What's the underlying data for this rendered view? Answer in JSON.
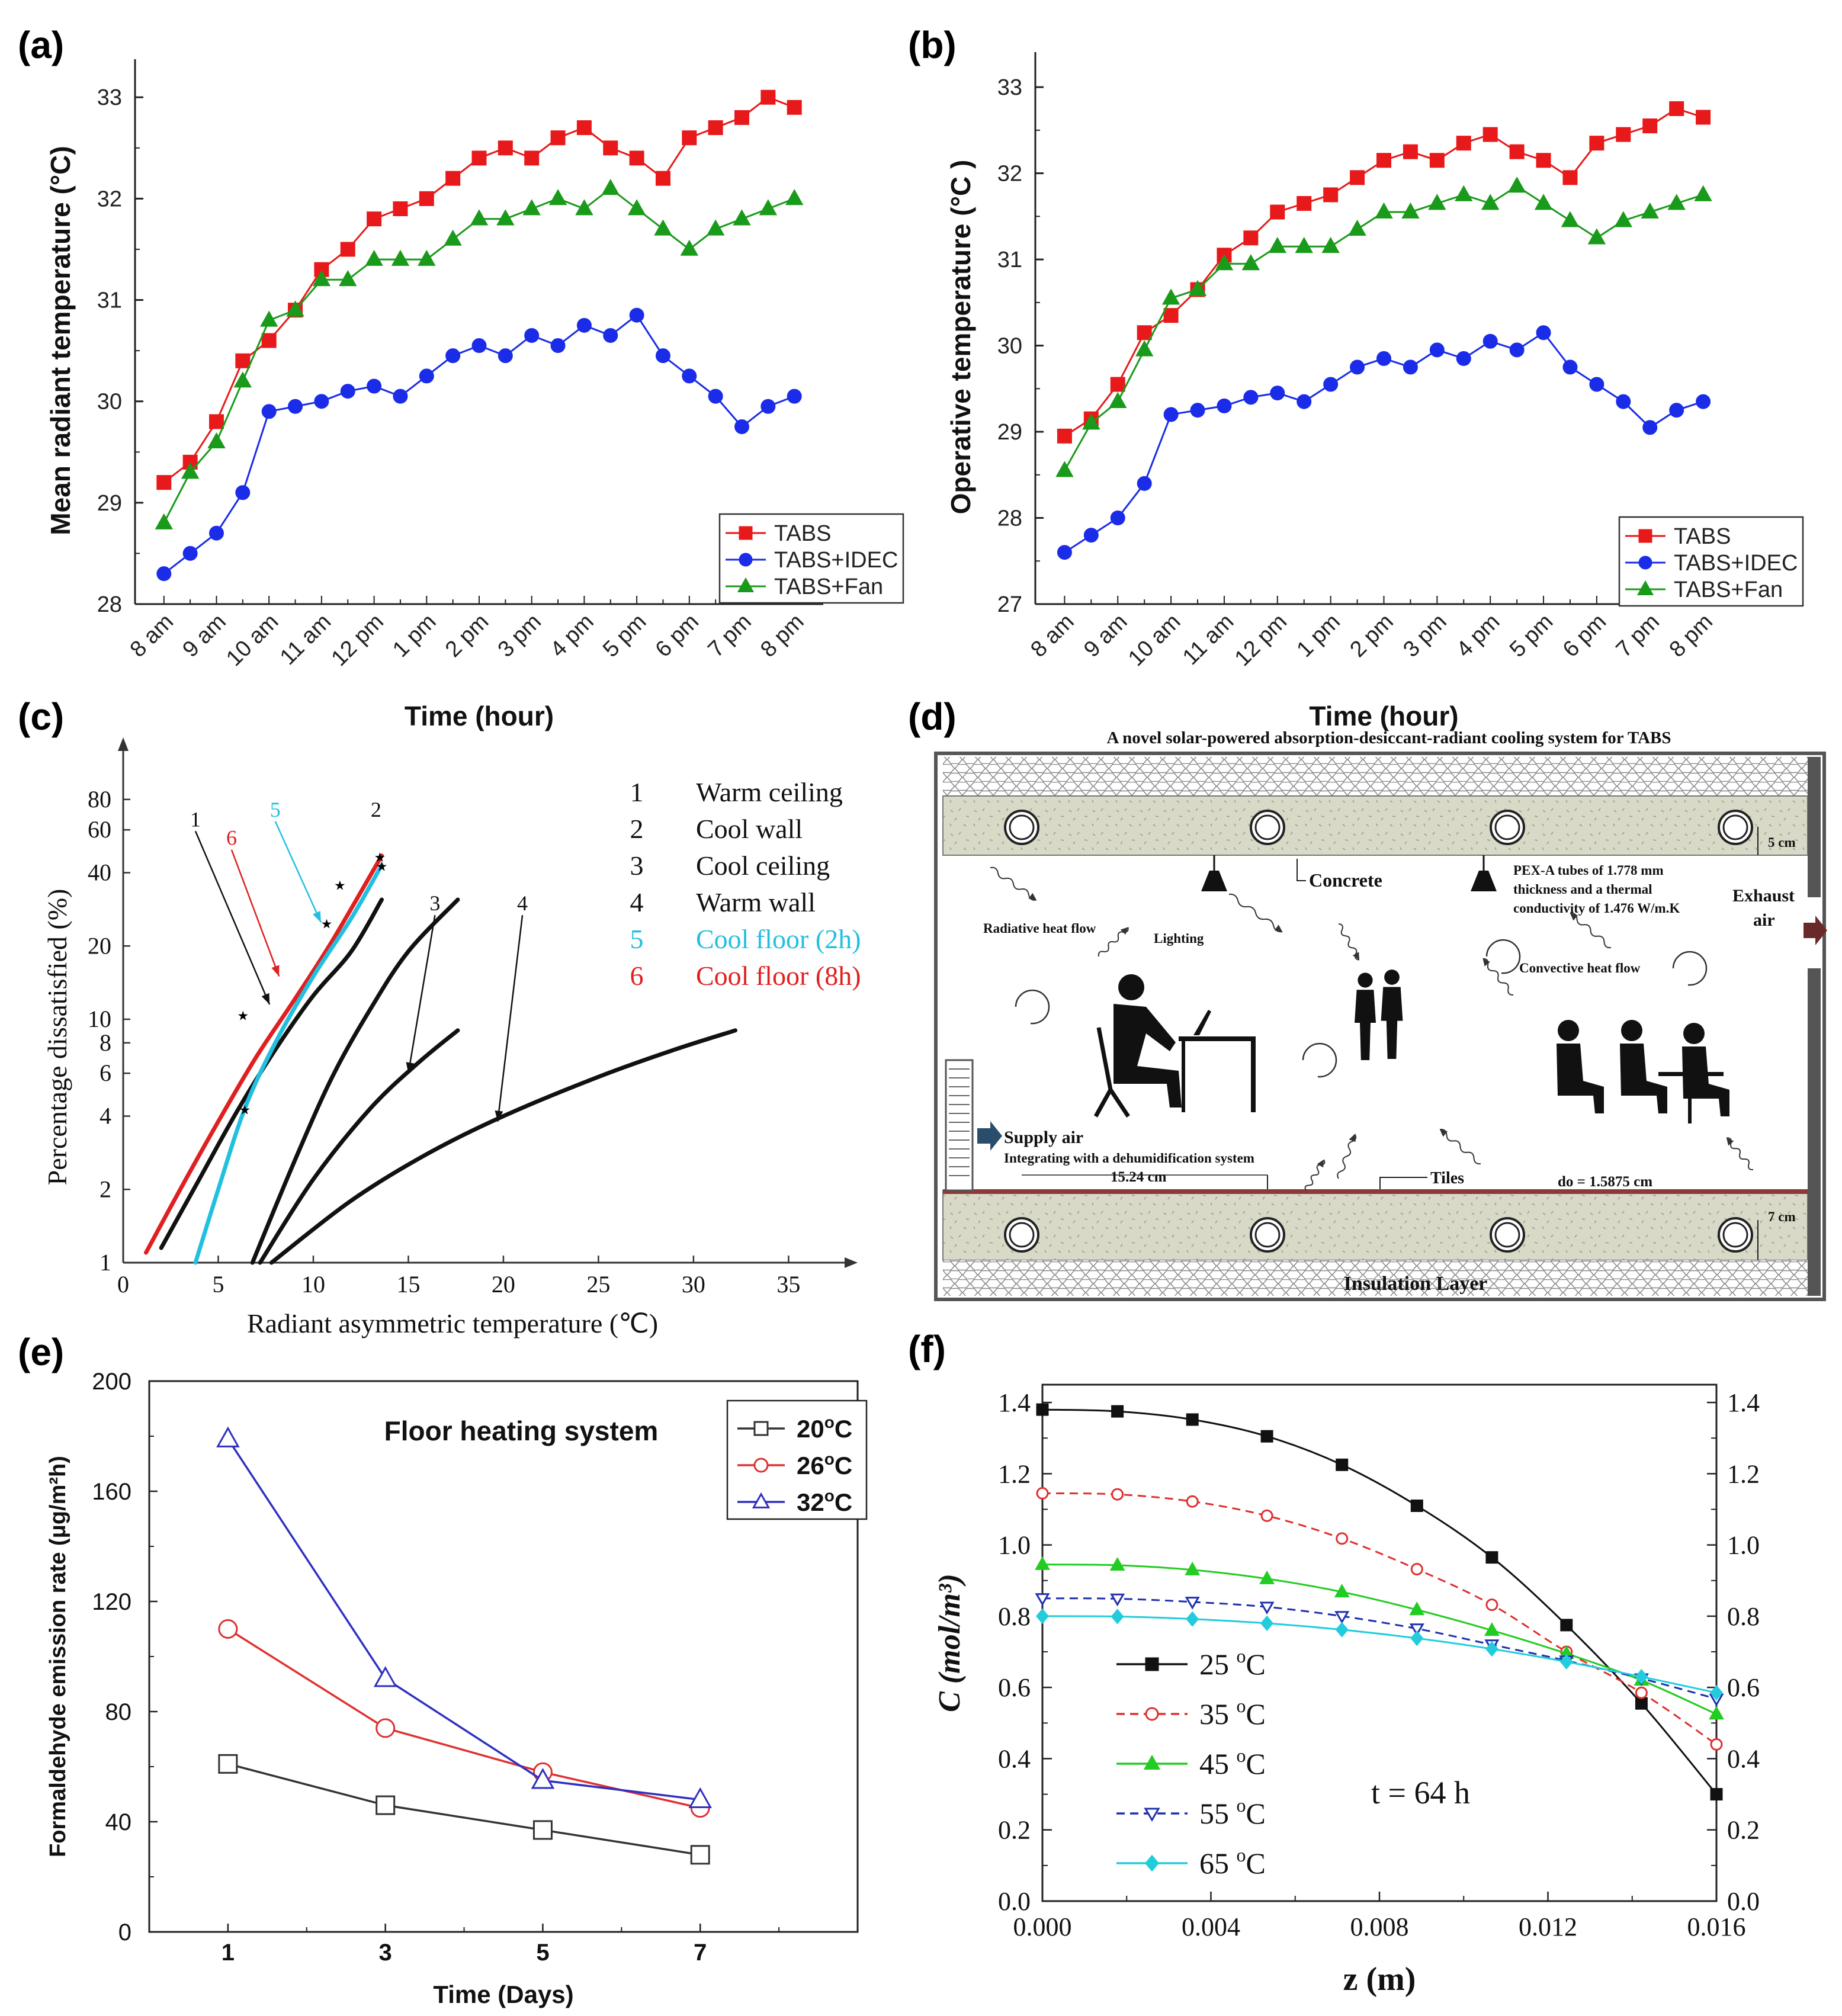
{
  "chart_data": [
    {
      "id": "a",
      "panel_label": "(a)",
      "type": "line",
      "xlabel": "Time (hour)",
      "ylabel": "Mean radiant temperature (°C)",
      "ylim": [
        28,
        33.2
      ],
      "yticks": [
        "28",
        "29",
        "30",
        "31",
        "32",
        "33"
      ],
      "xticks": [
        "8 am",
        "9 am",
        "10 am",
        "11 am",
        "12 pm",
        "1 pm",
        "2 pm",
        "3 pm",
        "4 pm",
        "5 pm",
        "6 pm",
        "7 pm",
        "8 pm"
      ],
      "x": [
        8,
        8.5,
        9,
        9.5,
        10,
        10.5,
        11,
        11.5,
        12,
        12.5,
        13,
        13.5,
        14,
        14.5,
        15,
        15.5,
        16,
        16.5,
        17,
        17.5,
        18,
        18.5,
        19,
        19.5,
        20
      ],
      "legend_position": "bottom-right",
      "series": [
        {
          "name": "TABS",
          "color": "#e8191a",
          "marker": "square",
          "values": [
            29.2,
            29.4,
            29.8,
            30.4,
            30.6,
            30.9,
            31.3,
            31.5,
            31.8,
            31.9,
            32.0,
            32.2,
            32.4,
            32.5,
            32.4,
            32.6,
            32.7,
            32.5,
            32.4,
            32.2,
            32.6,
            32.7,
            32.8,
            33.0,
            32.9
          ]
        },
        {
          "name": "TABS+IDEC",
          "color": "#1a2ce8",
          "marker": "circle",
          "values": [
            28.3,
            28.5,
            28.7,
            29.1,
            29.9,
            29.95,
            30.0,
            30.1,
            30.15,
            30.05,
            30.25,
            30.45,
            30.55,
            30.45,
            30.65,
            30.55,
            30.75,
            30.65,
            30.85,
            30.45,
            30.25,
            30.05,
            29.75,
            29.95,
            30.05
          ]
        },
        {
          "name": "TABS+Fan",
          "color": "#1a9a1a",
          "marker": "triangle",
          "values": [
            28.8,
            29.3,
            29.6,
            30.2,
            30.8,
            30.9,
            31.2,
            31.2,
            31.4,
            31.4,
            31.4,
            31.6,
            31.8,
            31.8,
            31.9,
            32.0,
            31.9,
            32.1,
            31.9,
            31.7,
            31.5,
            31.7,
            31.8,
            31.9,
            32.0
          ]
        }
      ]
    },
    {
      "id": "b",
      "panel_label": "(b)",
      "type": "line",
      "xlabel": "Time (hour)",
      "ylabel": "Operative temperature (°C )",
      "ylim": [
        27,
        33.2
      ],
      "yticks": [
        "27",
        "28",
        "29",
        "30",
        "31",
        "32",
        "33"
      ],
      "xticks": [
        "8 am",
        "9 am",
        "10 am",
        "11 am",
        "12 pm",
        "1 pm",
        "2 pm",
        "3 pm",
        "4 pm",
        "5 pm",
        "6 pm",
        "7 pm",
        "8 pm"
      ],
      "x": [
        8,
        8.5,
        9,
        9.5,
        10,
        10.5,
        11,
        11.5,
        12,
        12.5,
        13,
        13.5,
        14,
        14.5,
        15,
        15.5,
        16,
        16.5,
        17,
        17.5,
        18,
        18.5,
        19,
        19.5,
        20
      ],
      "legend_position": "bottom-right",
      "series": [
        {
          "name": "TABS",
          "color": "#e8191a",
          "marker": "square",
          "values": [
            28.95,
            29.15,
            29.55,
            30.15,
            30.35,
            30.65,
            31.05,
            31.25,
            31.55,
            31.65,
            31.75,
            31.95,
            32.15,
            32.25,
            32.15,
            32.35,
            32.45,
            32.25,
            32.15,
            31.95,
            32.35,
            32.45,
            32.55,
            32.75,
            32.65
          ]
        },
        {
          "name": "TABS+IDEC",
          "color": "#1a2ce8",
          "marker": "circle",
          "values": [
            27.6,
            27.8,
            28.0,
            28.4,
            29.2,
            29.25,
            29.3,
            29.4,
            29.45,
            29.35,
            29.55,
            29.75,
            29.85,
            29.75,
            29.95,
            29.85,
            30.05,
            29.95,
            30.15,
            29.75,
            29.55,
            29.35,
            29.05,
            29.25,
            29.35
          ]
        },
        {
          "name": "TABS+Fan",
          "color": "#1a9a1a",
          "marker": "triangle",
          "values": [
            28.55,
            29.1,
            29.35,
            29.95,
            30.55,
            30.65,
            30.95,
            30.95,
            31.15,
            31.15,
            31.15,
            31.35,
            31.55,
            31.55,
            31.65,
            31.75,
            31.65,
            31.85,
            31.65,
            31.45,
            31.25,
            31.45,
            31.55,
            31.65,
            31.75
          ]
        }
      ]
    },
    {
      "id": "c",
      "panel_label": "(c)",
      "type": "line",
      "xlabel": "Radiant asymmetric temperature (℃)",
      "ylabel": "Percentage dissatisfied (%)",
      "xlim": [
        0,
        38
      ],
      "ylim": [
        1,
        100
      ],
      "yscale": "log",
      "xticks": [
        "0",
        "5",
        "10",
        "15",
        "20",
        "25",
        "30",
        "35"
      ],
      "yticks": [
        "1",
        "2",
        "4",
        "6",
        "8",
        "10",
        "20",
        "40",
        "60",
        "80"
      ],
      "legend_position": "top-right",
      "legend": [
        {
          "num": "1",
          "label": "Warm ceiling",
          "color": "#111111"
        },
        {
          "num": "2",
          "label": "Cool wall",
          "color": "#111111"
        },
        {
          "num": "3",
          "label": "Cool ceiling",
          "color": "#111111"
        },
        {
          "num": "4",
          "label": "Warm wall",
          "color": "#111111"
        },
        {
          "num": "5",
          "label": "Cool floor (2h)",
          "color": "#22c0e0"
        },
        {
          "num": "6",
          "label": "Cool floor (8h)",
          "color": "#e02020"
        }
      ],
      "curve_labels": [
        "1",
        "6",
        "5",
        "2",
        "3",
        "4"
      ],
      "series": [
        {
          "name": "1",
          "color": "#111111",
          "points": [
            [
              2,
              1.15
            ],
            [
              4,
              2.2
            ],
            [
              6,
              4.2
            ],
            [
              8,
              7.5
            ],
            [
              10,
              12.5
            ],
            [
              12,
              19
            ],
            [
              13.6,
              31
            ]
          ]
        },
        {
          "name": "6",
          "color": "#e02020",
          "points": [
            [
              1.2,
              1.1
            ],
            [
              3,
              2
            ],
            [
              5,
              3.8
            ],
            [
              7,
              7
            ],
            [
              9,
              12
            ],
            [
              11,
              21
            ],
            [
              13.6,
              47
            ]
          ]
        },
        {
          "name": "5",
          "color": "#22c0e0",
          "points": [
            [
              3.8,
              1
            ],
            [
              5,
              2
            ],
            [
              6.4,
              4.3
            ],
            [
              8,
              8
            ],
            [
              10,
              15
            ],
            [
              12,
              26
            ],
            [
              13.6,
              43
            ]
          ]
        },
        {
          "name": "2",
          "color": "#111111",
          "points": [
            [
              6.8,
              1
            ],
            [
              9,
              2.6
            ],
            [
              11,
              5.8
            ],
            [
              13,
              11
            ],
            [
              15,
              19
            ],
            [
              17.6,
              31
            ]
          ]
        },
        {
          "name": "3",
          "color": "#111111",
          "points": [
            [
              7.2,
              1
            ],
            [
              10,
              2.2
            ],
            [
              13,
              4.3
            ],
            [
              15.5,
              6.6
            ],
            [
              17.6,
              9
            ]
          ]
        },
        {
          "name": "4",
          "color": "#111111",
          "points": [
            [
              7.8,
              1
            ],
            [
              12,
              1.8
            ],
            [
              16,
              2.8
            ],
            [
              20,
              4
            ],
            [
              25,
              5.8
            ],
            [
              29,
              7.5
            ],
            [
              32.2,
              9
            ]
          ]
        }
      ]
    },
    {
      "id": "d",
      "panel_label": "(d)",
      "type": "diagram",
      "title": "A novel solar-powered absorption-desiccant-radiant cooling system for TABS",
      "labels": {
        "concrete": "Concrete",
        "pex": [
          "PEX-A tubes of 1.778 mm",
          "thickness and a thermal",
          "conductivity of 1.476 W/m.K"
        ],
        "exhaust": [
          "Exhaust",
          "air"
        ],
        "radiative": "Radiative heat flow",
        "lighting": "Lighting",
        "convective": "Convective heat flow",
        "supply": "Supply air",
        "dehumid": "Integrating with a dehumidification system",
        "spacing": "15.24 cm",
        "tiles": "Tiles",
        "diameter": "do = 1.5875 cm",
        "insulation": "Insulation Layer",
        "top_thickness": "5 cm",
        "bottom_thickness": "7 cm"
      }
    },
    {
      "id": "e",
      "panel_label": "(e)",
      "type": "line",
      "title": "Floor heating system",
      "xlabel": "Time (Days)",
      "ylabel": "Formaldehyde emission rate (μg/m²h)",
      "xlim": [
        0,
        9
      ],
      "ylim": [
        0,
        200
      ],
      "xticks": [
        "1",
        "3",
        "5",
        "7"
      ],
      "yticks": [
        "0",
        "40",
        "80",
        "120",
        "160",
        "200"
      ],
      "x": [
        1,
        3,
        5,
        7
      ],
      "legend_position": "top-right",
      "series": [
        {
          "name": "20°C",
          "label": "20",
          "color": "#333333",
          "marker": "square",
          "values": [
            61,
            46,
            37,
            28
          ]
        },
        {
          "name": "26°C",
          "label": "26",
          "color": "#e03030",
          "marker": "circle",
          "values": [
            110,
            74,
            58,
            45
          ]
        },
        {
          "name": "32°C",
          "label": "32",
          "color": "#3030c0",
          "marker": "triangle",
          "values": [
            179,
            92,
            55,
            48
          ]
        }
      ]
    },
    {
      "id": "f",
      "panel_label": "(f)",
      "type": "line",
      "xlabel": "z  (m)",
      "ylabel": "C  (mol/m³)",
      "xlim": [
        0,
        0.016
      ],
      "ylim": [
        0,
        1.45
      ],
      "xticks": [
        "0.000",
        "0.004",
        "0.008",
        "0.012",
        "0.016"
      ],
      "yticks": [
        "0.0",
        "0.2",
        "0.4",
        "0.6",
        "0.8",
        "1.0",
        "1.2",
        "1.4"
      ],
      "annotation": "t = 64 h",
      "legend_position": "bottom-left",
      "x": [
        0,
        0.00178,
        0.00356,
        0.00533,
        0.00711,
        0.00889,
        0.01067,
        0.01244,
        0.01422,
        0.016
      ],
      "series": [
        {
          "name": "25 °C",
          "label": "25",
          "color": "#111111",
          "marker": "square",
          "dash": "solid",
          "values": [
            1.38,
            1.375,
            1.352,
            1.305,
            1.225,
            1.11,
            0.965,
            0.775,
            0.555,
            0.3
          ]
        },
        {
          "name": "35 °C",
          "label": "35",
          "color": "#e03030",
          "marker": "circle",
          "dash": "dash",
          "values": [
            1.145,
            1.142,
            1.122,
            1.082,
            1.018,
            0.932,
            0.832,
            0.7,
            0.585,
            0.44
          ]
        },
        {
          "name": "45 °C",
          "label": "45",
          "color": "#22cc22",
          "marker": "triangle",
          "dash": "solid",
          "values": [
            0.945,
            0.943,
            0.93,
            0.905,
            0.868,
            0.818,
            0.76,
            0.695,
            0.62,
            0.525
          ]
        },
        {
          "name": "55 °C",
          "label": "55",
          "color": "#2030b0",
          "marker": "triangle-down",
          "dash": "dash",
          "values": [
            0.85,
            0.849,
            0.84,
            0.826,
            0.8,
            0.765,
            0.72,
            0.675,
            0.625,
            0.568
          ]
        },
        {
          "name": "65 °C",
          "label": "65",
          "color": "#22ccdd",
          "marker": "diamond",
          "dash": "solid",
          "values": [
            0.8,
            0.799,
            0.792,
            0.78,
            0.762,
            0.738,
            0.708,
            0.672,
            0.63,
            0.585
          ]
        }
      ]
    }
  ]
}
